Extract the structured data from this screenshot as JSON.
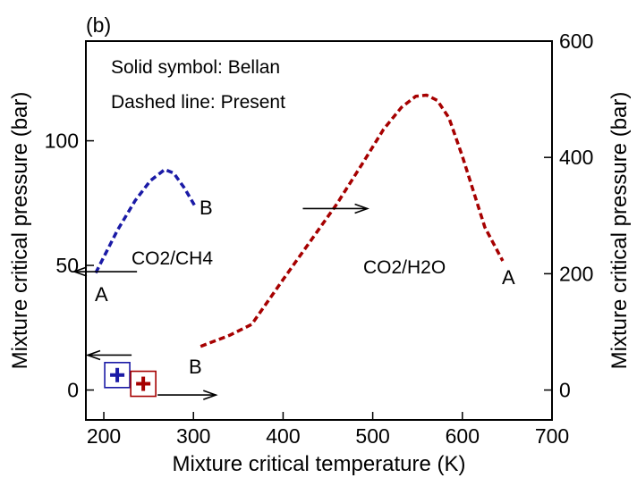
{
  "chart_data": {
    "type": "line",
    "panel_label": "(b)",
    "xlabel": "Mixture critical temperature (K)",
    "ylabel_left": "Mixture critical pressure (bar)",
    "ylabel_right": "Mixture critical pressure (bar)",
    "xlim": [
      180,
      700
    ],
    "ylim_left": [
      -12,
      140
    ],
    "ylim_right": [
      -51.4,
      600
    ],
    "x_ticks": [
      200,
      300,
      400,
      500,
      600,
      700
    ],
    "y_ticks_left": [
      0,
      50,
      100
    ],
    "y_ticks_right": [
      0,
      200,
      400,
      600
    ],
    "grid": false,
    "annotations": {
      "legend_solid": "Solid symbol: Bellan",
      "legend_dashed": "Dashed line: Present",
      "label_co2_ch4": "CO2/CH4",
      "label_co2_h2o": "CO2/H2O",
      "ch4_end_a": "A",
      "ch4_end_b": "B",
      "h2o_end_a": "A",
      "h2o_end_b": "B"
    },
    "series": [
      {
        "label": "CO2/CH4",
        "axis": "left",
        "color": "#1a1aa6",
        "style": "dashed",
        "x": [
          191,
          215,
          235,
          252,
          268,
          278,
          290,
          303
        ],
        "y": [
          47,
          64,
          76,
          84,
          88.5,
          87,
          81,
          73
        ]
      },
      {
        "label": "CO2/H2O",
        "axis": "right",
        "color": "#a60000",
        "style": "dashed",
        "x": [
          308,
          340,
          365,
          400,
          430,
          460,
          490,
          512,
          532,
          548,
          560,
          572,
          585,
          600,
          625,
          645
        ],
        "y": [
          75,
          94,
          113,
          190,
          255,
          320,
          393,
          448,
          486,
          505,
          507,
          498,
          468,
          402,
          280,
          222
        ]
      }
    ],
    "bellan_points": [
      {
        "label": "CO2/CH4",
        "axis": "left",
        "x": 215,
        "y": 6,
        "color": "#1a1aa6"
      },
      {
        "label": "CO2/H2O",
        "axis": "left",
        "x": 244,
        "y": 2.5,
        "color": "#a60000"
      }
    ],
    "arrows": [
      {
        "name": "arrow-co2-ch4-left",
        "x1": 237,
        "x2": 167,
        "y": 47.5,
        "axis": "left"
      },
      {
        "name": "arrow-co2-h2o-right",
        "x1": 422,
        "x2": 494,
        "y": 312,
        "axis": "right"
      },
      {
        "name": "arrow-bellan-ch4-left",
        "x1": 231,
        "x2": 182,
        "y": 14,
        "axis": "left"
      },
      {
        "name": "arrow-bellan-h2o-right",
        "x1": 260,
        "x2": 325,
        "y": -2,
        "axis": "left"
      }
    ]
  }
}
